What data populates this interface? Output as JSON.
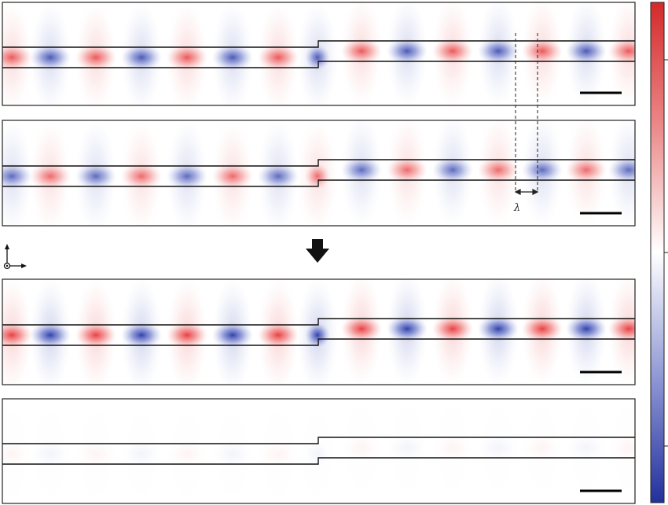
{
  "figure": {
    "annotation": {
      "symbol": "λ"
    },
    "arrow": {
      "direction": "down",
      "icon": "down-arrow-icon"
    },
    "axes_icon": {
      "icon": "axes-icon"
    },
    "colormap": {
      "colors": [
        "#2233a0",
        "#ffffff",
        "#e03030"
      ]
    },
    "panels": [
      {
        "name": "panel-1",
        "amplitude": 0.85,
        "scale_bar": true
      },
      {
        "name": "panel-2",
        "amplitude": 0.75,
        "scale_bar": true
      },
      {
        "name": "panel-3",
        "amplitude": 1.0,
        "scale_bar": true
      },
      {
        "name": "panel-4",
        "amplitude": 0.05,
        "scale_bar": true
      }
    ]
  }
}
